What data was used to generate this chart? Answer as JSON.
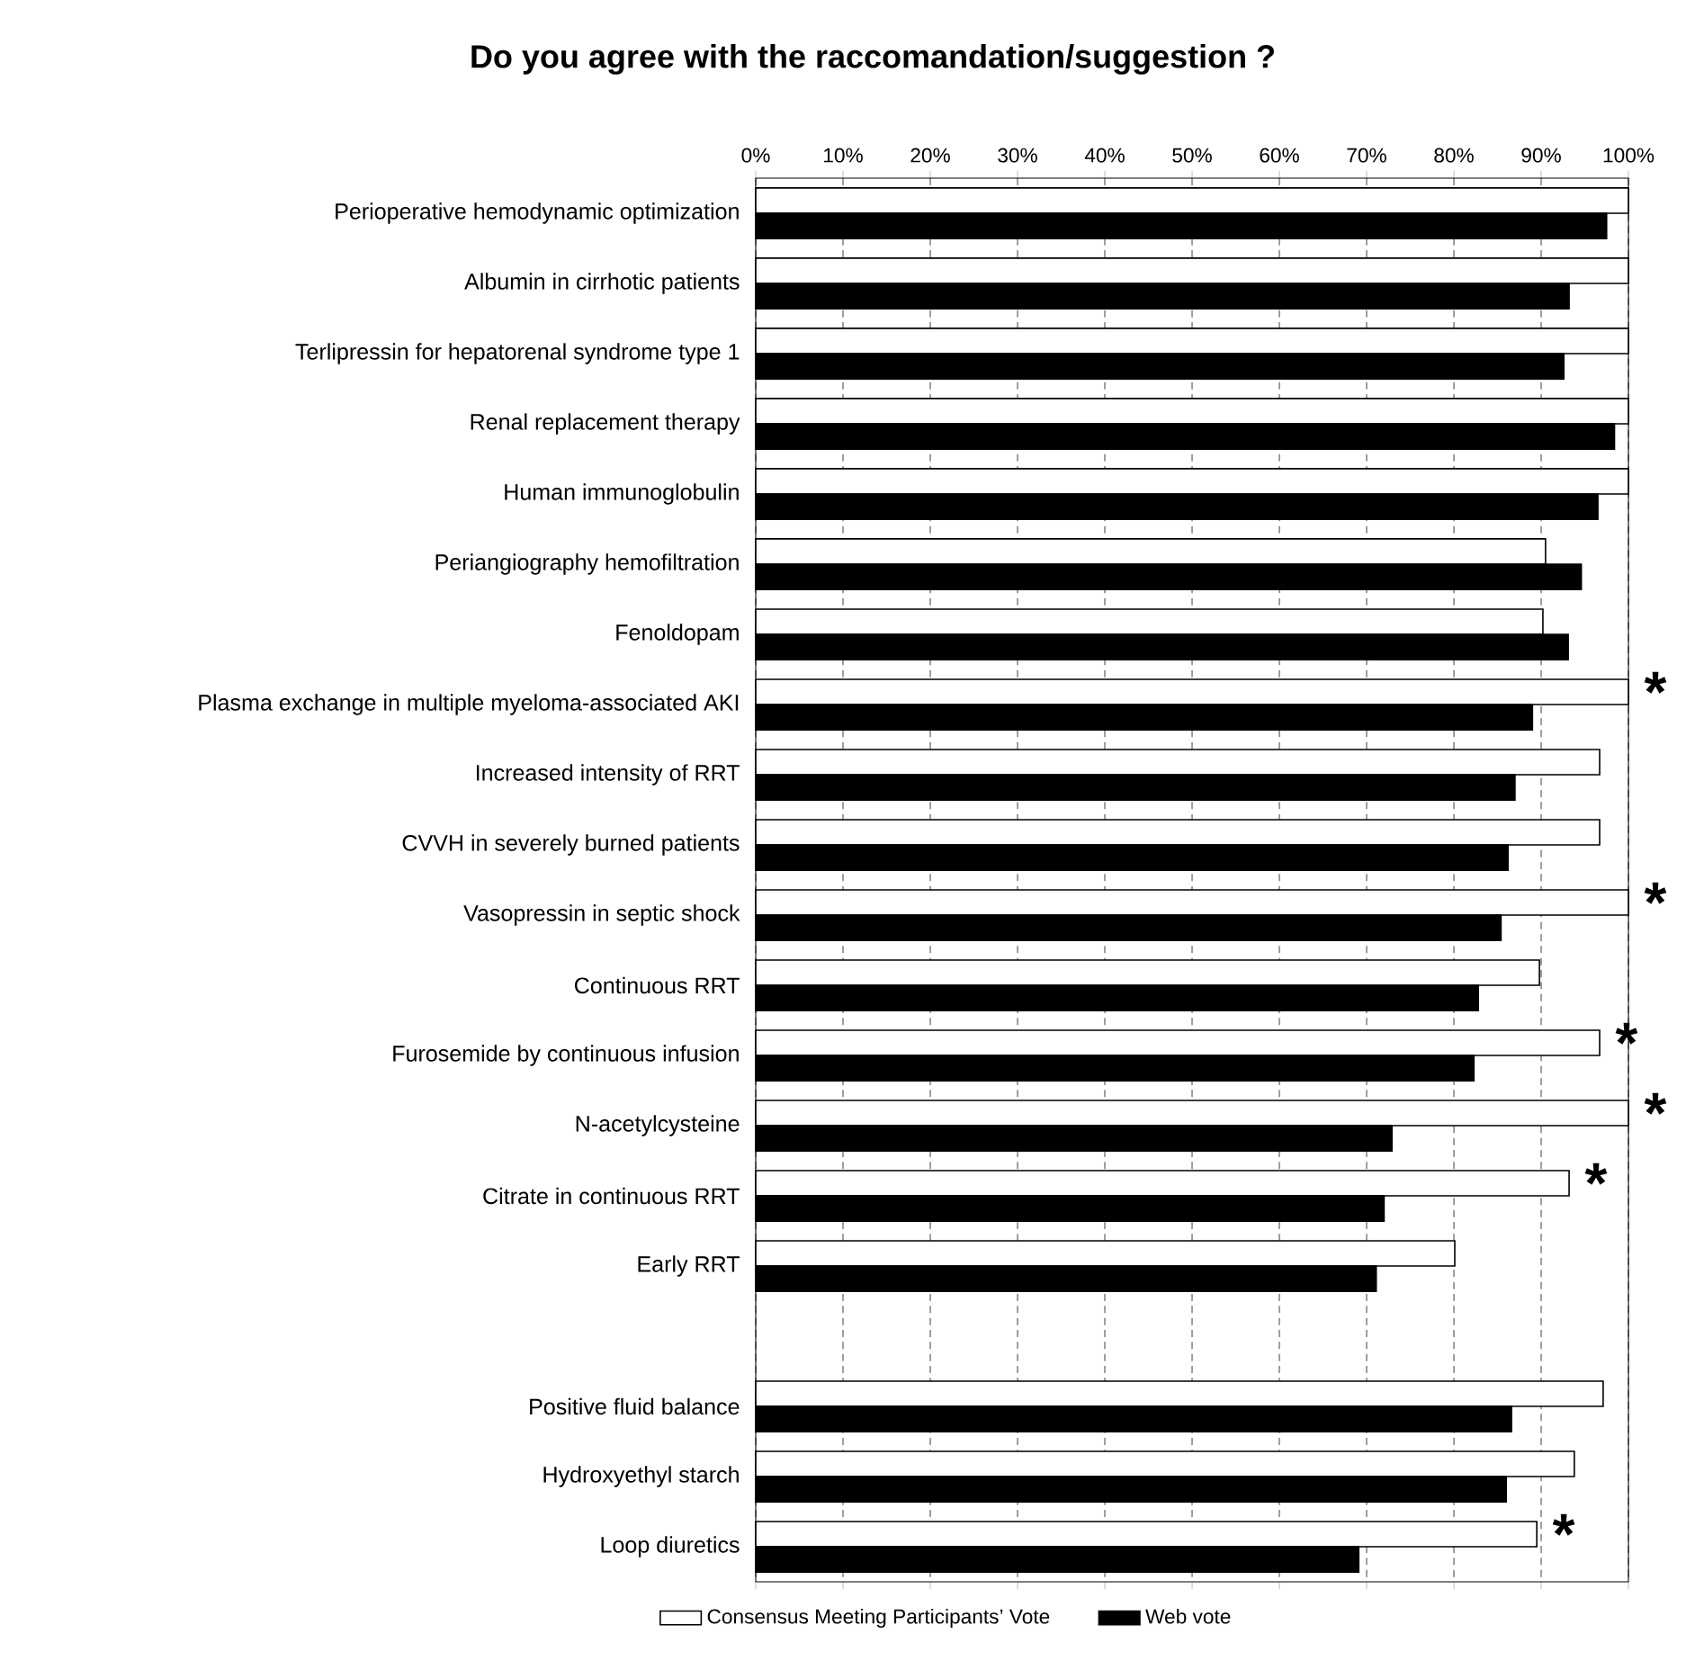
{
  "chart_data": {
    "type": "bar",
    "orientation": "horizontal",
    "title": "Do you agree with the raccomandation/suggestion ?",
    "categories": [
      "Perioperative hemodynamic optimization",
      "Albumin in cirrhotic patients",
      "Terlipressin for hepatorenal syndrome type 1",
      "Renal replacement therapy",
      "Human immunoglobulin",
      "Periangiography hemofiltration",
      "Fenoldopam",
      "Plasma exchange in multiple myeloma-associated AKI",
      "Increased intensity of RRT",
      "CVVH in severely burned patients",
      "Vasopressin in septic shock",
      "Continuous RRT",
      "Furosemide by continuous infusion",
      "N-acetylcysteine",
      "Citrate in continuous RRT",
      "Early RRT",
      null,
      "Positive fluid balance",
      "Hydroxyethyl starch",
      "Loop diuretics"
    ],
    "series": [
      {
        "name": "Consensus Meeting Participants’ Vote",
        "color": "#ffffff",
        "values": [
          100,
          100,
          100,
          100,
          100,
          90.5,
          90.2,
          100,
          96.7,
          96.7,
          100,
          89.8,
          96.7,
          100,
          93.2,
          80.1,
          null,
          97.1,
          93.8,
          89.5
        ]
      },
      {
        "name": "Web vote",
        "color": "#000000",
        "values": [
          97.5,
          93.2,
          92.6,
          98.4,
          96.5,
          94.6,
          93.1,
          89.0,
          87.0,
          86.2,
          85.4,
          82.8,
          82.3,
          72.9,
          72.0,
          71.1,
          null,
          86.6,
          86.0,
          69.1
        ]
      }
    ],
    "xlim": [
      0,
      100
    ],
    "xticks": [
      {
        "value": 0,
        "label": "0%"
      },
      {
        "value": 10,
        "label": "10%"
      },
      {
        "value": 20,
        "label": "20%"
      },
      {
        "value": 30,
        "label": "30%"
      },
      {
        "value": 40,
        "label": "40%"
      },
      {
        "value": 50,
        "label": "50%"
      },
      {
        "value": 60,
        "label": "60%"
      },
      {
        "value": 70,
        "label": "70%"
      },
      {
        "value": 80,
        "label": "80%"
      },
      {
        "value": 90,
        "label": "90%"
      },
      {
        "value": 100,
        "label": "100%"
      }
    ],
    "grid": "x",
    "legend": "bottom",
    "annotations": [
      {
        "text": "*",
        "x": 100,
        "y": "Plasma exchange in multiple myeloma-associated AKI"
      },
      {
        "text": "*",
        "x": 100,
        "y": "Vasopressin in septic shock"
      },
      {
        "text": "*",
        "x": 96.7,
        "y": "Furosemide by continuous infusion"
      },
      {
        "text": "*",
        "x": 100,
        "y": "N-acetylcysteine"
      },
      {
        "text": "*",
        "x": 93.2,
        "y": "Citrate in continuous RRT"
      },
      {
        "text": "*",
        "x": 89.5,
        "y": "Loop diuretics"
      }
    ]
  }
}
